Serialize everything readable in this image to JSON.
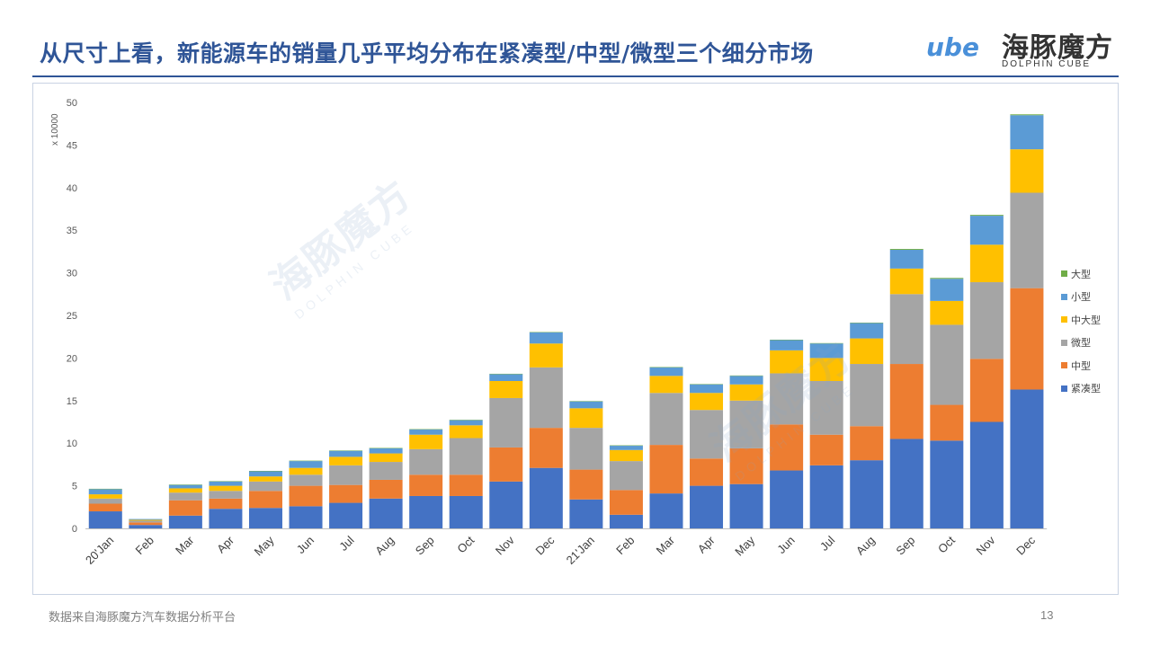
{
  "header": {
    "title": "从尺寸上看，新能源车的销量几乎平均分布在紧凑型/中型/微型三个细分市场",
    "logo_cube": "ube",
    "logo_cn": "海豚魔方",
    "logo_en": "DOLPHIN CUBE"
  },
  "footer": {
    "source": "数据来自海豚魔方汽车数据分析平台",
    "page_number": "13"
  },
  "watermark": {
    "cn": "海豚魔方",
    "en": "DOLPHIN CUBE",
    "cube": "ube"
  },
  "colors": {
    "title": "#2f5597",
    "紧凑型": "#4472c4",
    "中型": "#ed7d31",
    "微型": "#a5a5a5",
    "中大型": "#ffc000",
    "小型": "#5b9bd5",
    "大型": "#70ad47"
  },
  "chart_data": {
    "type": "bar",
    "stacked": true,
    "unit_label": "x 10000",
    "ylim": [
      0,
      50
    ],
    "yticks": [
      0,
      5,
      10,
      15,
      20,
      25,
      30,
      35,
      40,
      45,
      50
    ],
    "grid": false,
    "legend_position": "right",
    "categories": [
      "20'Jan",
      "Feb",
      "Mar",
      "Apr",
      "May",
      "Jun",
      "Jul",
      "Aug",
      "Sep",
      "Oct",
      "Nov",
      "Dec",
      "21'Jan",
      "Feb",
      "Mar",
      "Apr",
      "May",
      "Jun",
      "Jul",
      "Aug",
      "Sep",
      "Oct",
      "Nov",
      "Dec"
    ],
    "series": [
      {
        "name": "紧凑型",
        "color": "#4472c4",
        "values": [
          2.0,
          0.4,
          1.5,
          2.3,
          2.4,
          2.6,
          3.0,
          3.5,
          3.8,
          3.8,
          5.5,
          7.1,
          3.4,
          1.6,
          4.1,
          5.0,
          5.2,
          6.8,
          7.4,
          8.0,
          10.5,
          10.3,
          12.5,
          16.3
        ]
      },
      {
        "name": "中型",
        "color": "#ed7d31",
        "values": [
          0.9,
          0.3,
          1.8,
          1.2,
          2.0,
          2.4,
          2.1,
          2.2,
          2.5,
          2.5,
          4.0,
          4.7,
          3.5,
          2.9,
          5.7,
          3.2,
          4.2,
          5.4,
          3.6,
          4.0,
          8.8,
          4.2,
          7.4,
          11.9
        ]
      },
      {
        "name": "微型",
        "color": "#a5a5a5",
        "values": [
          0.6,
          0.2,
          0.9,
          0.9,
          1.1,
          1.3,
          2.3,
          2.1,
          3.0,
          4.3,
          5.8,
          7.1,
          4.9,
          3.4,
          6.1,
          5.7,
          5.6,
          6.0,
          6.3,
          7.3,
          8.2,
          9.4,
          9.0,
          11.2
        ]
      },
      {
        "name": "中大型",
        "color": "#ffc000",
        "values": [
          0.5,
          0.1,
          0.5,
          0.6,
          0.6,
          0.8,
          1.0,
          1.0,
          1.7,
          1.5,
          2.0,
          2.8,
          2.3,
          1.3,
          2.0,
          2.0,
          1.9,
          2.7,
          2.7,
          3.0,
          3.0,
          2.8,
          4.4,
          5.1
        ]
      },
      {
        "name": "小型",
        "color": "#5b9bd5",
        "values": [
          0.6,
          0.1,
          0.4,
          0.5,
          0.6,
          0.8,
          0.7,
          0.6,
          0.6,
          0.6,
          0.8,
          1.3,
          0.8,
          0.5,
          1.0,
          1.0,
          1.0,
          1.2,
          1.7,
          1.8,
          2.2,
          2.6,
          3.4,
          4.0
        ]
      },
      {
        "name": "大型",
        "color": "#70ad47",
        "values": [
          0.05,
          0.0,
          0.05,
          0.05,
          0.05,
          0.05,
          0.05,
          0.05,
          0.05,
          0.05,
          0.05,
          0.05,
          0.05,
          0.05,
          0.05,
          0.05,
          0.05,
          0.05,
          0.05,
          0.05,
          0.1,
          0.1,
          0.1,
          0.1
        ]
      }
    ],
    "legend_order": [
      "大型",
      "小型",
      "中大型",
      "微型",
      "中型",
      "紧凑型"
    ]
  }
}
